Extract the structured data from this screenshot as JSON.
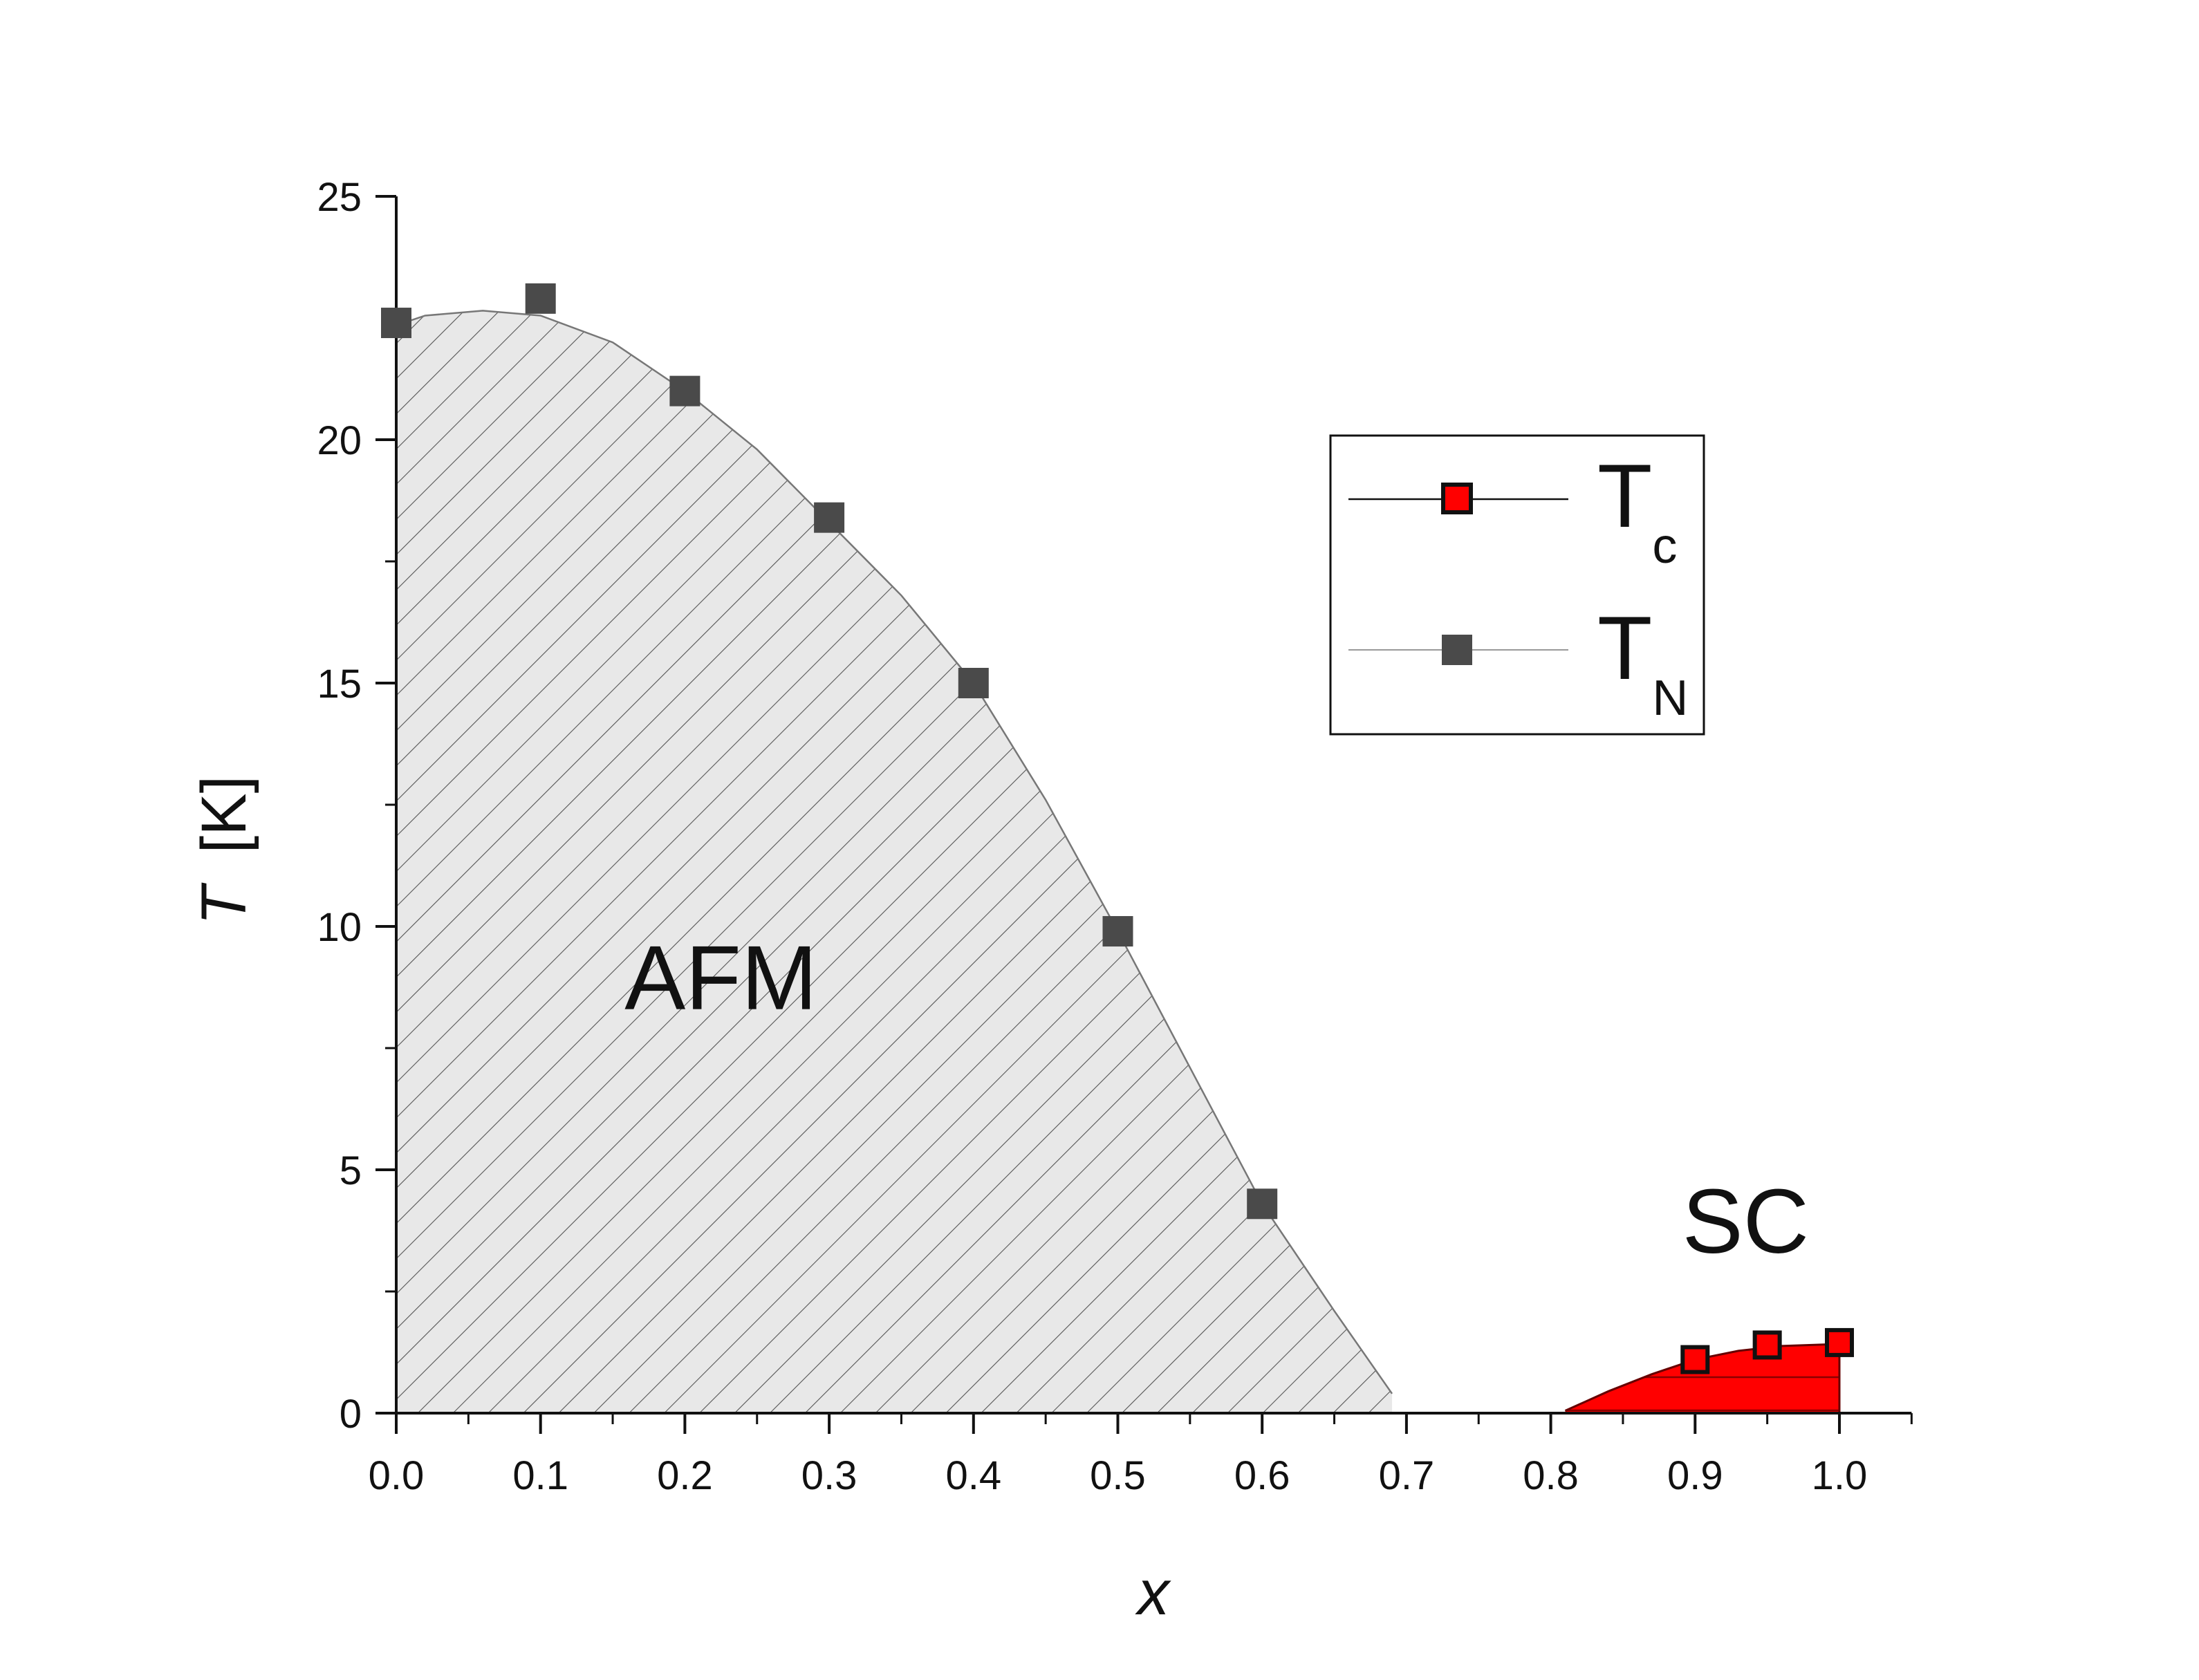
{
  "chart_data": {
    "type": "scatter",
    "xlabel": "x",
    "ylabel_symbol": "T",
    "ylabel_unit": "[K]",
    "xlim": [
      0.0,
      1.05
    ],
    "ylim": [
      0,
      25
    ],
    "x_ticks": [
      "0.0",
      "0.1",
      "0.2",
      "0.3",
      "0.4",
      "0.5",
      "0.6",
      "0.7",
      "0.8",
      "0.9",
      "1.0"
    ],
    "x_tick_values": [
      0.0,
      0.1,
      0.2,
      0.3,
      0.4,
      0.5,
      0.6,
      0.7,
      0.8,
      0.9,
      1.0
    ],
    "y_ticks": [
      "0",
      "5",
      "10",
      "15",
      "20",
      "25"
    ],
    "y_tick_values": [
      0,
      5,
      10,
      15,
      20,
      25
    ],
    "grid": false,
    "legend_position": "top-right",
    "series": [
      {
        "name": "T",
        "name_sub": "c",
        "color": "#ff0000",
        "edge_color": "#111111",
        "x": [
          0.9,
          0.95,
          1.0
        ],
        "y": [
          1.1,
          1.4,
          1.45
        ]
      },
      {
        "name": "T",
        "name_sub": "N",
        "color": "#4a4a4a",
        "x": [
          0.0,
          0.1,
          0.2,
          0.3,
          0.4,
          0.5,
          0.6
        ],
        "y": [
          22.4,
          22.9,
          21.0,
          18.4,
          15.0,
          9.9,
          4.3
        ]
      }
    ],
    "regions": [
      {
        "label": "AFM",
        "fill": "#e8e8e8",
        "hatch_color": "#555555",
        "label_x": 0.225,
        "label_y": 8.3,
        "boundary_x": [
          0.0,
          0.02,
          0.06,
          0.1,
          0.15,
          0.2,
          0.25,
          0.3,
          0.35,
          0.4,
          0.45,
          0.5,
          0.55,
          0.6,
          0.65,
          0.69
        ],
        "boundary_y": [
          22.35,
          22.55,
          22.65,
          22.55,
          22.0,
          21.0,
          19.8,
          18.3,
          16.8,
          15.0,
          12.6,
          9.9,
          7.1,
          4.3,
          2.1,
          0.4
        ]
      },
      {
        "label": "SC",
        "fill": "#ff0000",
        "hatch_color": "#b00000",
        "label_x": 0.935,
        "label_y": 3.3,
        "boundary_x": [
          0.81,
          0.84,
          0.87,
          0.9,
          0.93,
          0.96,
          1.0
        ],
        "boundary_y": [
          0.05,
          0.45,
          0.8,
          1.1,
          1.28,
          1.38,
          1.42
        ]
      }
    ]
  }
}
